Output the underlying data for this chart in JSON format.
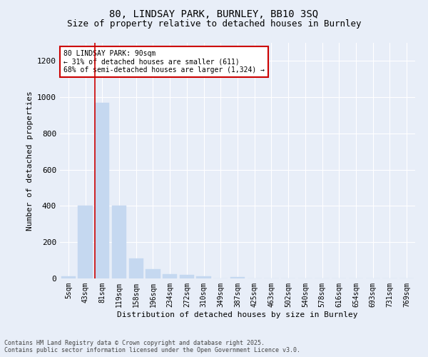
{
  "title_line1": "80, LINDSAY PARK, BURNLEY, BB10 3SQ",
  "title_line2": "Size of property relative to detached houses in Burnley",
  "xlabel": "Distribution of detached houses by size in Burnley",
  "ylabel": "Number of detached properties",
  "annotation_line1": "80 LINDSAY PARK: 90sqm",
  "annotation_line2": "← 31% of detached houses are smaller (611)",
  "annotation_line3": "68% of semi-detached houses are larger (1,324) →",
  "footer_line1": "Contains HM Land Registry data © Crown copyright and database right 2025.",
  "footer_line2": "Contains public sector information licensed under the Open Government Licence v3.0.",
  "bar_color": "#c5d8f0",
  "bar_edge_color": "#c5d8f0",
  "categories": [
    "5sqm",
    "43sqm",
    "81sqm",
    "119sqm",
    "158sqm",
    "196sqm",
    "234sqm",
    "272sqm",
    "310sqm",
    "349sqm",
    "387sqm",
    "425sqm",
    "463sqm",
    "502sqm",
    "540sqm",
    "578sqm",
    "616sqm",
    "654sqm",
    "693sqm",
    "731sqm",
    "769sqm"
  ],
  "values": [
    12,
    400,
    970,
    400,
    110,
    50,
    22,
    18,
    12,
    0,
    8,
    0,
    0,
    0,
    0,
    0,
    0,
    0,
    0,
    0,
    0
  ],
  "ylim": [
    0,
    1300
  ],
  "yticks": [
    0,
    200,
    400,
    600,
    800,
    1000,
    1200
  ],
  "background_color": "#e8eef8",
  "grid_color": "#ffffff",
  "annotation_box_facecolor": "#ffffff",
  "annotation_box_edgecolor": "#cc0000",
  "red_line_color": "#cc0000",
  "title1_fontsize": 10,
  "title2_fontsize": 9,
  "ylabel_fontsize": 8,
  "xlabel_fontsize": 8,
  "tick_fontsize": 7,
  "annot_fontsize": 7,
  "footer_fontsize": 6
}
